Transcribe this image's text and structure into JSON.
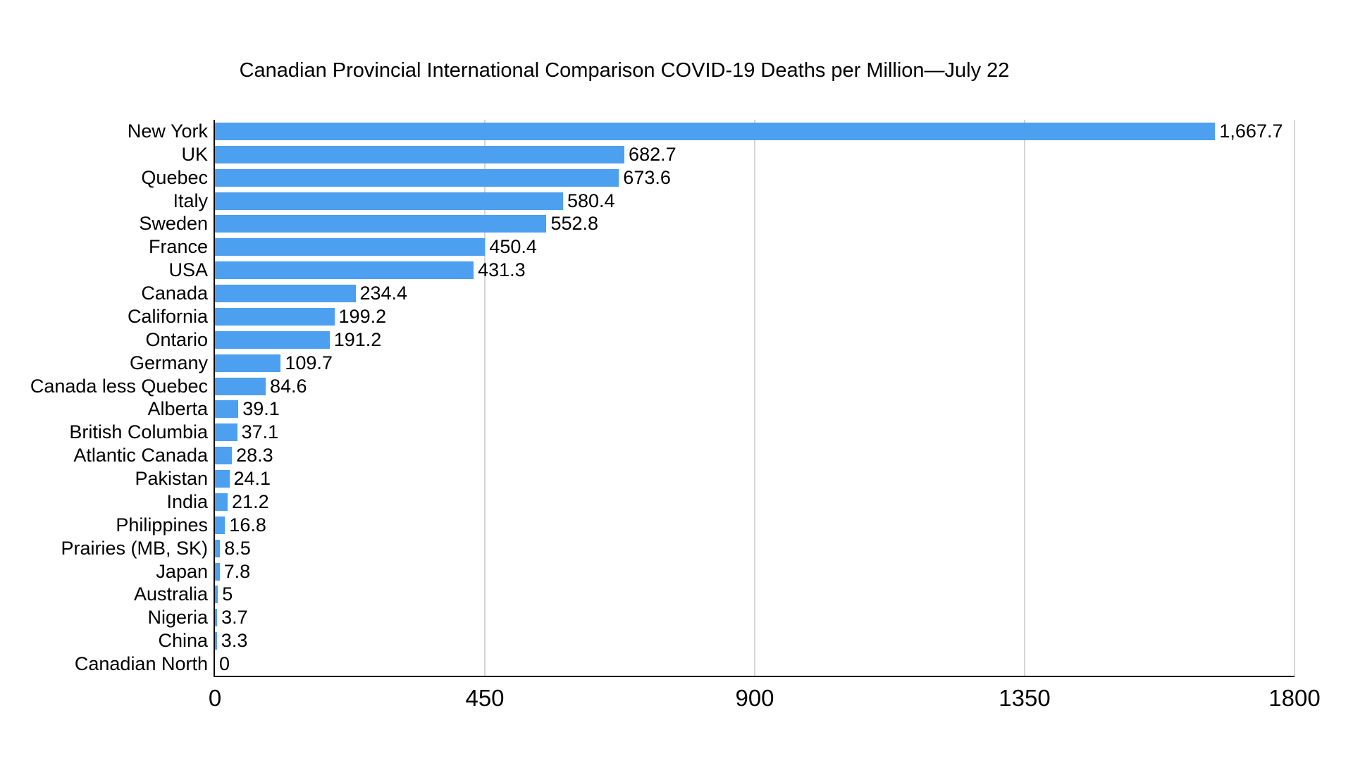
{
  "colors": {
    "bar": "#4D9FF0",
    "grid": "#D5D5D5",
    "axis": "#000000"
  },
  "chart_data": {
    "type": "bar",
    "orientation": "horizontal",
    "title": "Canadian Provincial International Comparison COVID-19 Deaths per Million—July 22",
    "categories": [
      "New York",
      "UK",
      "Quebec",
      "Italy",
      "Sweden",
      "France",
      "USA",
      "Canada",
      "California",
      "Ontario",
      "Germany",
      "Canada less Quebec",
      "Alberta",
      "British Columbia",
      "Atlantic Canada",
      "Pakistan",
      "India",
      "Philippines",
      "Prairies (MB, SK)",
      "Japan",
      "Australia",
      "Nigeria",
      "China",
      "Canadian North"
    ],
    "values": [
      1667.7,
      682.7,
      673.6,
      580.4,
      552.8,
      450.4,
      431.3,
      234.4,
      199.2,
      191.2,
      109.7,
      84.6,
      39.1,
      37.1,
      28.3,
      24.1,
      21.2,
      16.8,
      8.5,
      7.8,
      5,
      3.7,
      3.3,
      0
    ],
    "value_labels": [
      "1,667.7",
      "682.7",
      "673.6",
      "580.4",
      "552.8",
      "450.4",
      "431.3",
      "234.4",
      "199.2",
      "191.2",
      "109.7",
      "84.6",
      "39.1",
      "37.1",
      "28.3",
      "24.1",
      "21.2",
      "16.8",
      "8.5",
      "7.8",
      "5",
      "3.7",
      "3.3",
      "0"
    ],
    "xlabel": "",
    "ylabel": "",
    "xlim": [
      0,
      1800
    ],
    "x_ticks": [
      0,
      450,
      900,
      1350,
      1800
    ],
    "x_tick_labels": [
      "0",
      "450",
      "900",
      "1350",
      "1800"
    ],
    "grid": true,
    "legend_position": "none"
  }
}
